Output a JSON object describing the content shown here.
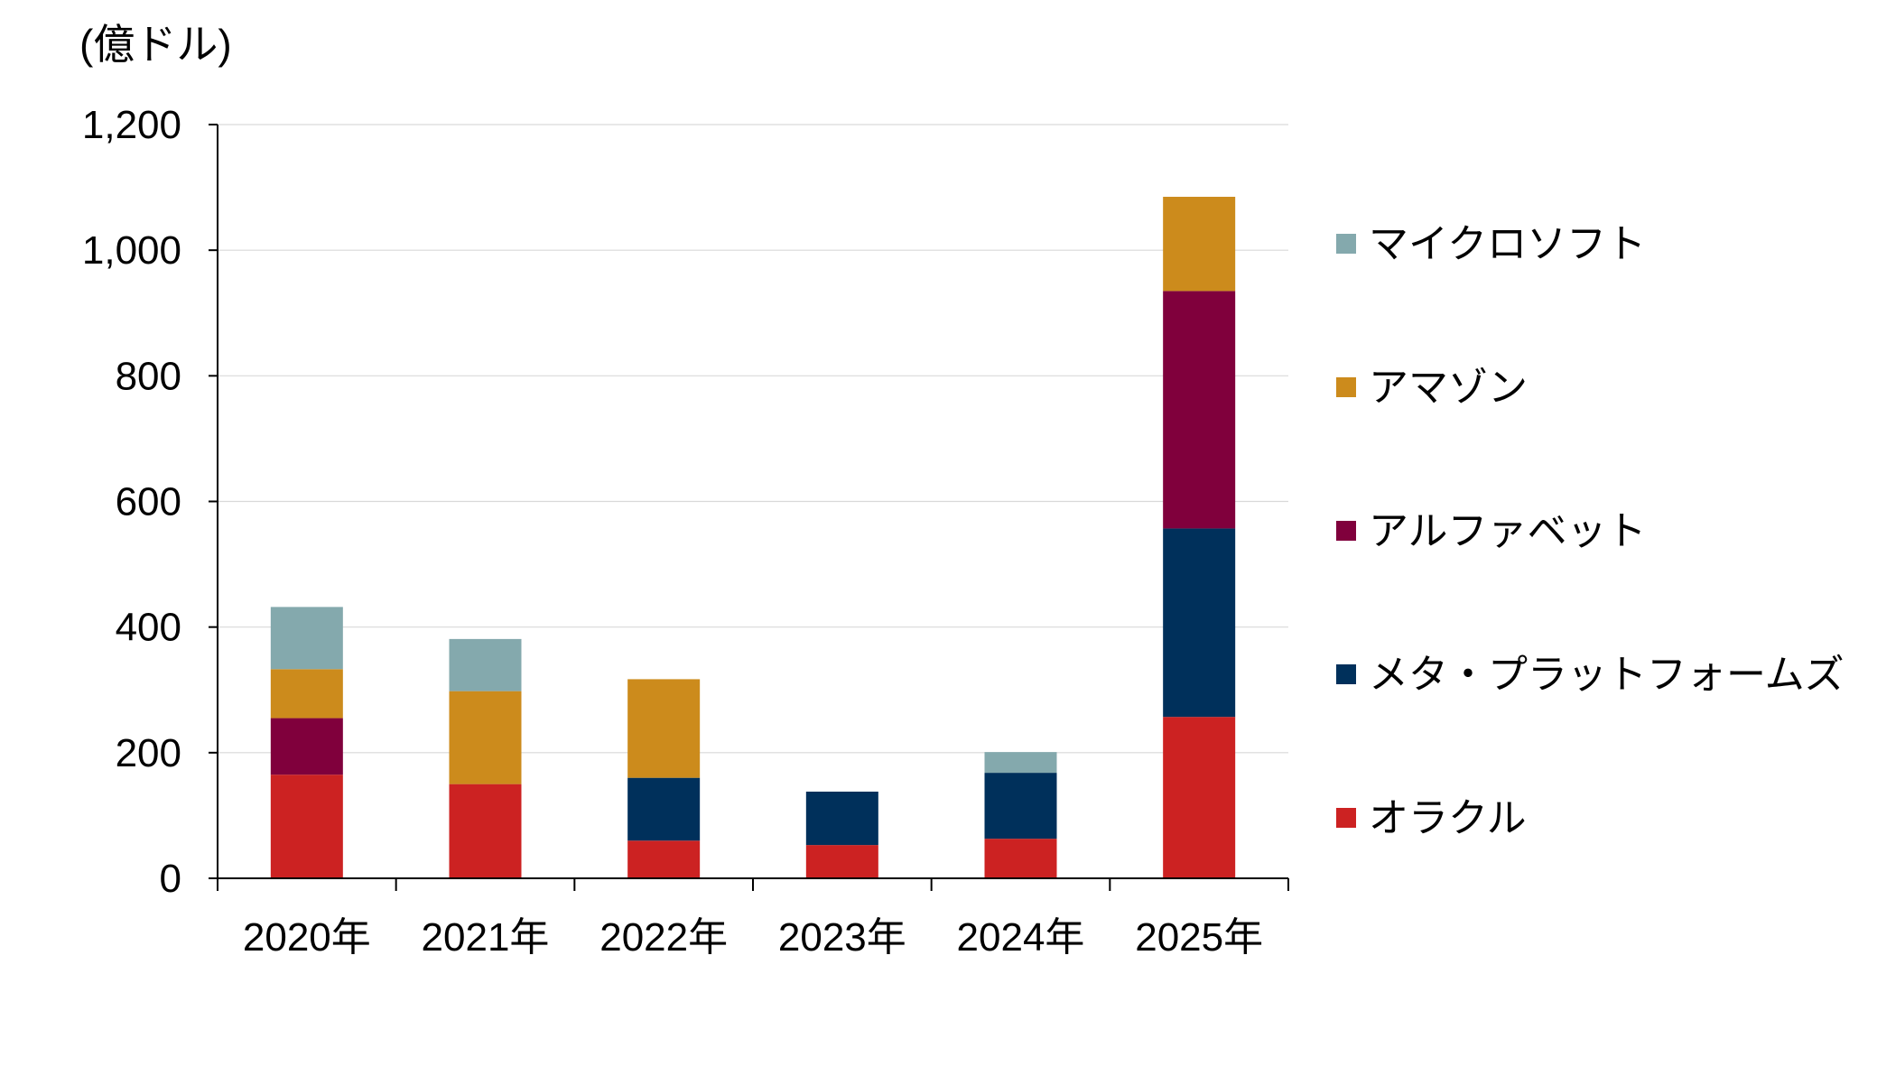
{
  "chart_data": {
    "type": "bar",
    "stacked": true,
    "ylabel": "(億ドル)",
    "xlabel": "",
    "ylim": [
      0,
      1200
    ],
    "yticks": [
      0,
      200,
      400,
      600,
      800,
      1000,
      1200
    ],
    "ytick_labels": [
      "0",
      "200",
      "400",
      "600",
      "800",
      "1,000",
      "1,200"
    ],
    "grid": true,
    "legend_position": "right",
    "categories": [
      "2020年",
      "2021年",
      "2022年",
      "2023年",
      "2024年",
      "2025年"
    ],
    "series": [
      {
        "name": "オラクル",
        "color": "#cc2222",
        "values": [
          165,
          150,
          60,
          53,
          63,
          257
        ]
      },
      {
        "name": "メタ・プラットフォームズ",
        "color": "#00305b",
        "values": [
          0,
          0,
          100,
          85,
          105,
          300
        ]
      },
      {
        "name": "アルファベット",
        "color": "#80003c",
        "values": [
          90,
          0,
          0,
          0,
          0,
          378
        ]
      },
      {
        "name": "アマゾン",
        "color": "#cc8b1c",
        "values": [
          78,
          148,
          157,
          0,
          0,
          150
        ]
      },
      {
        "name": "マイクロソフト",
        "color": "#84a9ad",
        "values": [
          99,
          83,
          0,
          0,
          33,
          0
        ]
      }
    ],
    "legend_order": [
      "マイクロソフト",
      "アマゾン",
      "アルファベット",
      "メタ・プラットフォームズ",
      "オラクル"
    ]
  }
}
